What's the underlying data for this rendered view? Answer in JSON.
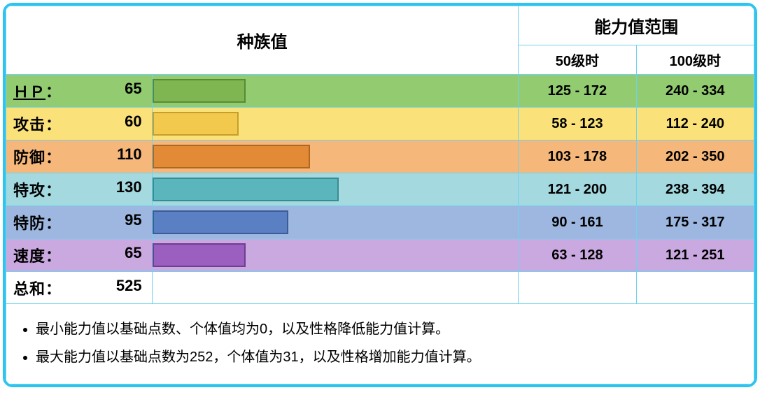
{
  "frame": {
    "border_color": "#2dc4f0"
  },
  "grid_color": "#6fd3ee",
  "headers": {
    "base_stats": "种族值",
    "range_title": "能力值范围",
    "lvl50": "50级时",
    "lvl100": "100级时"
  },
  "bar_max": 255,
  "stats": [
    {
      "key": "hp",
      "name": "ＨＰ",
      "value": 65,
      "row_bg": "#92cb70",
      "bar_bg": "#7fb651",
      "bar_border": "#5a8a36",
      "range50": "125 - 172",
      "range100": "240 - 334",
      "underline": true
    },
    {
      "key": "attack",
      "name": "攻击",
      "value": 60,
      "row_bg": "#fae17a",
      "bar_bg": "#f2c94c",
      "bar_border": "#c79f28",
      "range50": "58 - 123",
      "range100": "112 - 240",
      "underline": false
    },
    {
      "key": "defense",
      "name": "防御",
      "value": 110,
      "row_bg": "#f5b77a",
      "bar_bg": "#e38a36",
      "bar_border": "#b0661f",
      "range50": "103 - 178",
      "range100": "202 - 350",
      "underline": false
    },
    {
      "key": "spatk",
      "name": "特攻",
      "value": 130,
      "row_bg": "#a3d9df",
      "bar_bg": "#5ab5bd",
      "bar_border": "#3a8b92",
      "range50": "121 - 200",
      "range100": "238 - 394",
      "underline": false
    },
    {
      "key": "spdef",
      "name": "特防",
      "value": 95,
      "row_bg": "#9db7e0",
      "bar_bg": "#5a7fc2",
      "bar_border": "#3c5c96",
      "range50": "90 - 161",
      "range100": "175 - 317",
      "underline": false
    },
    {
      "key": "speed",
      "name": "速度",
      "value": 65,
      "row_bg": "#caa9e0",
      "bar_bg": "#9b5fc0",
      "bar_border": "#6f3e90",
      "range50": "63 - 128",
      "range100": "121 - 251",
      "underline": false
    }
  ],
  "total": {
    "label": "总和",
    "value": 525
  },
  "footnotes": [
    "最小能力值以基础点数、个体值均为0，以及性格降低能力值计算。",
    "最大能力值以基础点数为252，个体值为31，以及性格增加能力值计算。"
  ]
}
